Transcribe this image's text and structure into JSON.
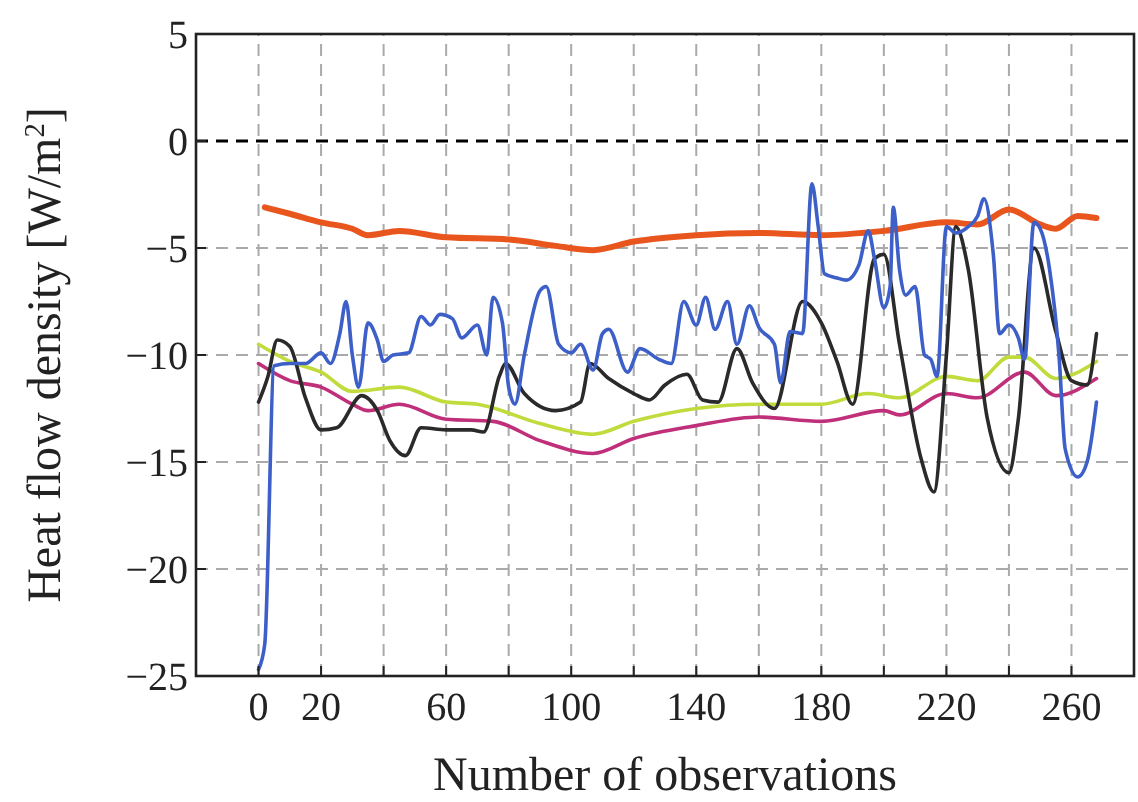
{
  "chart_data": {
    "type": "line",
    "xlabel": "Number of observations",
    "ylabel": "Heat flow density [W/m$^{2}$]",
    "xlim": [
      -20,
      280
    ],
    "ylim": [
      -25,
      5
    ],
    "xticks": [
      0,
      20,
      {
        "value": 40,
        "label": null
      },
      60,
      {
        "value": 80,
        "label": null
      },
      100,
      {
        "value": 120,
        "label": null
      },
      140,
      {
        "value": 160,
        "label": null
      },
      180,
      {
        "value": 200,
        "label": null
      },
      220,
      {
        "value": 240,
        "label": null
      },
      260
    ],
    "yticks": [
      -25,
      -20,
      -15,
      -10,
      -5,
      0,
      5
    ],
    "grid": true,
    "line_style": "solid",
    "ref_lines": [
      {
        "axis": "y",
        "value": 0,
        "color": "#000000",
        "line_style": "dashed"
      }
    ],
    "series": [
      {
        "color": "#e8561e",
        "x": [
          2,
          10,
          20,
          30,
          35,
          45,
          60,
          80,
          95,
          107,
          120,
          140,
          160,
          180,
          200,
          220,
          230,
          240,
          250,
          255,
          262,
          268
        ],
        "values": [
          -3.1,
          -3.4,
          -3.8,
          -4.1,
          -4.4,
          -4.2,
          -4.5,
          -4.6,
          -4.9,
          -5.1,
          -4.7,
          -4.4,
          -4.3,
          -4.4,
          -4.2,
          -3.8,
          -3.9,
          -3.2,
          -3.9,
          -4.1,
          -3.5,
          -3.6
        ]
      },
      {
        "color": "#c0dc3c",
        "x": [
          0,
          10,
          20,
          30,
          45,
          60,
          70,
          90,
          107,
          120,
          140,
          160,
          180,
          195,
          205,
          220,
          230,
          240,
          245,
          255,
          268
        ],
        "values": [
          -9.5,
          -10.3,
          -10.8,
          -11.7,
          -11.5,
          -12.2,
          -12.3,
          -13.2,
          -13.7,
          -13.1,
          -12.5,
          -12.3,
          -12.3,
          -11.8,
          -12,
          -11,
          -11.2,
          -10.1,
          -10.1,
          -11.1,
          -10.3
        ]
      },
      {
        "color": "#c0307a",
        "x": [
          0,
          10,
          20,
          30,
          35,
          45,
          60,
          75,
          90,
          107,
          120,
          140,
          160,
          180,
          200,
          205,
          220,
          230,
          245,
          255,
          268
        ],
        "values": [
          -10.4,
          -11.2,
          -11.5,
          -12.3,
          -12.6,
          -12.3,
          -13,
          -13.1,
          -14,
          -14.6,
          -13.9,
          -13.3,
          -12.9,
          -13.1,
          -12.6,
          -12.8,
          -11.8,
          -12,
          -10.8,
          -11.9,
          -11.1
        ]
      },
      {
        "color": "#2a2a2a",
        "x": [
          0,
          3,
          6,
          10,
          15,
          20,
          25,
          33,
          38,
          42,
          47,
          52,
          60,
          68,
          72,
          77,
          79,
          85,
          95,
          103,
          106,
          112,
          120,
          125,
          130,
          137,
          142,
          147,
          153,
          158,
          165,
          174,
          180,
          185,
          190,
          197,
          200,
          205,
          212,
          216,
          220,
          223,
          227,
          233,
          240,
          243,
          248,
          255,
          260,
          265,
          268
        ],
        "values": [
          -12.2,
          -11,
          -9.3,
          -9.6,
          -12,
          -13.5,
          -13.4,
          -11.9,
          -12.6,
          -14,
          -14.7,
          -13.4,
          -13.5,
          -13.5,
          -13.6,
          -11,
          -10.4,
          -11.8,
          -12.6,
          -12.2,
          -10.4,
          -11.1,
          -11.8,
          -12.1,
          -11.4,
          -10.9,
          -12.1,
          -12.2,
          -9.7,
          -11.3,
          -12.5,
          -7.5,
          -8.5,
          -10.3,
          -12.3,
          -5.5,
          -5.3,
          -9.5,
          -14.9,
          -16.4,
          -10,
          -4,
          -6,
          -12.9,
          -15.5,
          -13,
          -5,
          -8.9,
          -11.2,
          -11.4,
          -9
        ]
      },
      {
        "color": "#3c5fc8",
        "x": [
          0,
          2,
          5,
          10,
          15,
          20,
          23,
          26,
          28,
          30,
          32,
          35,
          38,
          40,
          43,
          48,
          52,
          55,
          58,
          62,
          65,
          70,
          73,
          75,
          78,
          80,
          82,
          85,
          90,
          92,
          96,
          100,
          103,
          107,
          110,
          112,
          118,
          122,
          128,
          132,
          136,
          140,
          143,
          146,
          150,
          153,
          157,
          160,
          165,
          167,
          170,
          174,
          177,
          179,
          181,
          185,
          188,
          192,
          195,
          197,
          200,
          202,
          203,
          205,
          207,
          210,
          213,
          215,
          217,
          220,
          223,
          227,
          230,
          232,
          235,
          237,
          240,
          243,
          245,
          248,
          250,
          253,
          256,
          258,
          262,
          265,
          268
        ],
        "values": [
          -24.7,
          -23.5,
          -10.5,
          -10.4,
          -10.4,
          -9.9,
          -10.4,
          -9,
          -7.5,
          -10,
          -11.5,
          -8.5,
          -9.3,
          -10.3,
          -10,
          -9.9,
          -8.2,
          -8.6,
          -8.1,
          -8.3,
          -9.2,
          -8.6,
          -10,
          -7.3,
          -8.5,
          -11.5,
          -12.3,
          -10,
          -7,
          -6.8,
          -9.5,
          -9.9,
          -9.5,
          -10.7,
          -9,
          -8.8,
          -10.8,
          -9.7,
          -10.2,
          -10.4,
          -7.5,
          -8.6,
          -7.3,
          -8.8,
          -7.5,
          -9.5,
          -7.7,
          -8.7,
          -9.5,
          -11.3,
          -8.9,
          -9,
          -2,
          -4,
          -6.2,
          -6.4,
          -6.5,
          -5.8,
          -4.2,
          -5.5,
          -7.8,
          -6.8,
          -3.1,
          -6,
          -7.2,
          -6.8,
          -10,
          -10.2,
          -11,
          -4,
          -4.3,
          -4,
          -3.5,
          -2.7,
          -5.3,
          -9,
          -8.6,
          -9.2,
          -10.2,
          -3.8,
          -4.1,
          -6,
          -10,
          -14.4,
          -15.7,
          -15,
          -12.2
        ]
      }
    ]
  }
}
